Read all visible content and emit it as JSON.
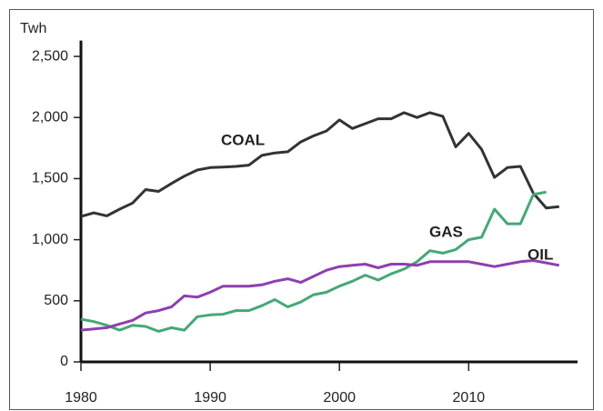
{
  "chart_data": {
    "type": "line",
    "y_label": "Twh",
    "x": [
      1980,
      1981,
      1982,
      1983,
      1984,
      1985,
      1986,
      1987,
      1988,
      1989,
      1990,
      1991,
      1992,
      1993,
      1994,
      1995,
      1996,
      1997,
      1998,
      1999,
      2000,
      2001,
      2002,
      2003,
      2004,
      2005,
      2006,
      2007,
      2008,
      2009,
      2010,
      2011,
      2012,
      2013,
      2014,
      2015,
      2016,
      2017
    ],
    "series": [
      {
        "name": "COAL",
        "color": "#333333",
        "values": [
          1190,
          1220,
          1195,
          1250,
          1300,
          1410,
          1395,
          1460,
          1520,
          1570,
          1590,
          1595,
          1600,
          1610,
          1690,
          1710,
          1720,
          1800,
          1850,
          1890,
          1980,
          1910,
          1950,
          1990,
          1990,
          2040,
          2000,
          2040,
          2010,
          1760,
          1870,
          1740,
          1510,
          1590,
          1600,
          1380,
          1260,
          1270
        ]
      },
      {
        "name": "GAS",
        "color": "#45a877",
        "values": [
          350,
          330,
          300,
          260,
          300,
          290,
          250,
          280,
          260,
          370,
          385,
          390,
          420,
          420,
          460,
          510,
          450,
          490,
          550,
          570,
          620,
          660,
          710,
          670,
          720,
          760,
          820,
          910,
          890,
          920,
          1000,
          1020,
          1250,
          1130,
          1130,
          1370,
          1390,
          null
        ]
      },
      {
        "name": "OIL",
        "color": "#8e3fae",
        "values": [
          260,
          270,
          280,
          310,
          340,
          400,
          420,
          450,
          540,
          530,
          570,
          620,
          620,
          620,
          630,
          660,
          680,
          650,
          700,
          750,
          780,
          790,
          800,
          770,
          800,
          800,
          790,
          820,
          820,
          820,
          820,
          800,
          780,
          800,
          820,
          830,
          810,
          790
        ]
      }
    ],
    "xlim": [
      1980,
      2018
    ],
    "xticks": [
      1980,
      1990,
      2000,
      2010
    ],
    "ylim": [
      0,
      2600
    ],
    "yticks": [
      0,
      500,
      {
        "value": 1000,
        "label": "1,000"
      },
      {
        "value": 1500,
        "label": "1,500"
      },
      {
        "value": 2000,
        "label": "2,000"
      },
      {
        "value": 2500,
        "label": "2,500"
      }
    ]
  }
}
